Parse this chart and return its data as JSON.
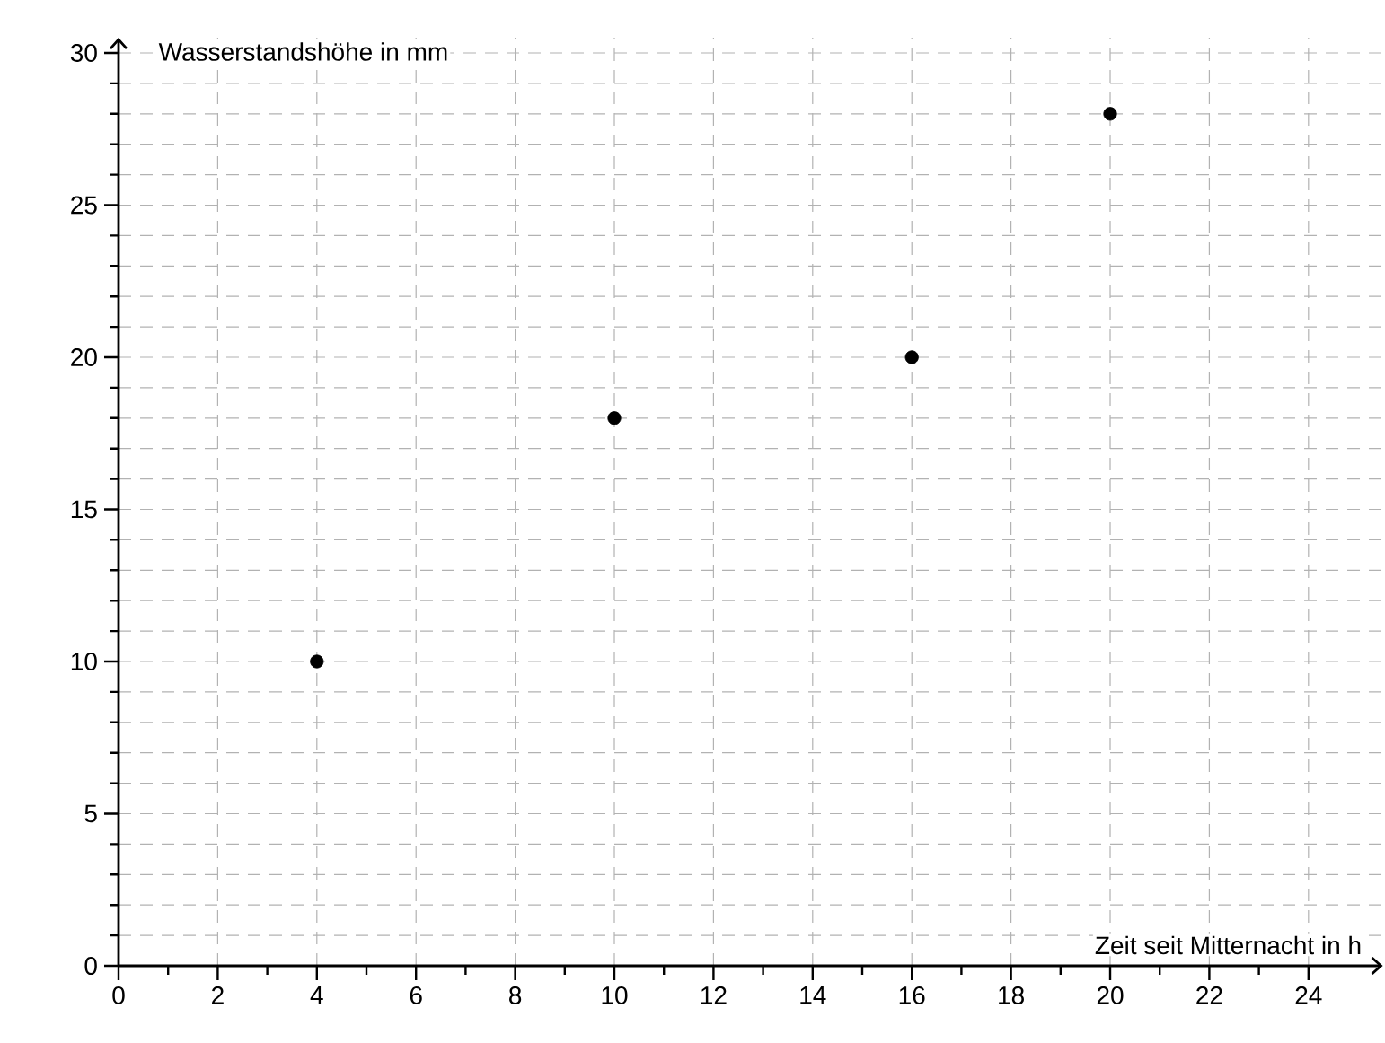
{
  "chart_data": {
    "type": "scatter",
    "xlabel": "Zeit seit Mitternacht in h",
    "ylabel": "Wasserstandshöhe in mm",
    "x": [
      4,
      10,
      16,
      20
    ],
    "values": [
      10,
      18,
      20,
      28
    ],
    "color": "#000000",
    "xlim": [
      0,
      25.5
    ],
    "ylim": [
      0,
      30.5
    ],
    "xticks": [
      0,
      2,
      4,
      6,
      8,
      10,
      12,
      14,
      16,
      18,
      20,
      22,
      24
    ],
    "yticks": [
      0,
      5,
      10,
      15,
      20,
      25,
      30
    ],
    "grid": true
  }
}
